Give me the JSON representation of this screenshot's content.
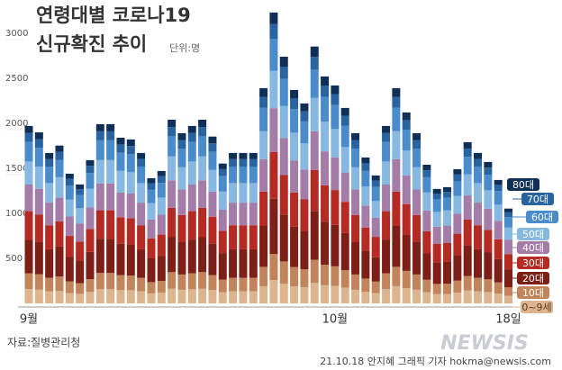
{
  "chart_data": {
    "type": "stacked_bar",
    "title": "연령대별 코로나19",
    "subtitle": "신규확진 추이",
    "unit": "단위:명",
    "source": "자료:질병관리청",
    "credit": "21.10.18 안지혜 그래픽 기자 hokma@newsis.com",
    "watermark": "NEWSIS",
    "categories": [
      "9월",
      null,
      null,
      null,
      null,
      null,
      null,
      null,
      null,
      null,
      null,
      null,
      null,
      null,
      null,
      null,
      null,
      null,
      null,
      null,
      null,
      null,
      null,
      null,
      null,
      null,
      null,
      null,
      null,
      null,
      "10월",
      null,
      null,
      null,
      null,
      null,
      null,
      null,
      null,
      null,
      null,
      null,
      null,
      null,
      null,
      null,
      null,
      "18일"
    ],
    "ylim": [
      0,
      3200
    ],
    "yticks": [
      500,
      1000,
      1500,
      2000,
      2500,
      3000
    ],
    "series": [
      {
        "name": "0~9세",
        "color": "#dcb58f",
        "values": [
          158,
          152,
          134,
          140,
          115,
          106,
          127,
          159,
          159,
          147,
          146,
          134,
          111,
          118,
          163,
          151,
          158,
          163,
          148,
          124,
          134,
          134,
          134,
          191,
          258,
          219,
          190,
          178,
          228,
          202,
          194,
          174,
          151,
          130,
          114,
          158,
          191,
          170,
          151,
          123,
          102,
          103,
          119,
          143,
          134,
          126,
          110,
          84
        ]
      },
      {
        "name": "10대",
        "color": "#c2845a",
        "values": [
          177,
          171,
          150,
          158,
          130,
          119,
          143,
          179,
          179,
          166,
          164,
          150,
          125,
          132,
          184,
          170,
          177,
          184,
          167,
          140,
          150,
          150,
          150,
          215,
          291,
          247,
          213,
          200,
          257,
          227,
          218,
          195,
          170,
          146,
          128,
          177,
          215,
          191,
          170,
          139,
          114,
          116,
          134,
          161,
          150,
          141,
          123,
          95
        ]
      },
      {
        "name": "20대",
        "color": "#7e1f17",
        "values": [
          374,
          361,
          317,
          333,
          274,
          251,
          302,
          378,
          378,
          350,
          346,
          317,
          264,
          279,
          388,
          359,
          374,
          388,
          352,
          295,
          317,
          317,
          317,
          454,
          614,
          521,
          450,
          422,
          542,
          479,
          460,
          412,
          359,
          308,
          270,
          374,
          454,
          403,
          359,
          293,
          241,
          245,
          283,
          340,
          317,
          298,
          260,
          200
        ]
      },
      {
        "name": "30대",
        "color": "#b52a22",
        "values": [
          315,
          304,
          267,
          280,
          230,
          211,
          254,
          318,
          318,
          294,
          291,
          267,
          222,
          235,
          326,
          302,
          315,
          326,
          296,
          248,
          267,
          267,
          267,
          382,
          517,
          438,
          379,
          355,
          456,
          403,
          387,
          347,
          302,
          259,
          227,
          315,
          382,
          339,
          302,
          246,
          203,
          206,
          238,
          286,
          267,
          251,
          219,
          168
        ]
      },
      {
        "name": "40대",
        "color": "#a47ca8",
        "values": [
          296,
          285,
          251,
          263,
          216,
          198,
          239,
          299,
          299,
          276,
          273,
          251,
          209,
          221,
          306,
          284,
          296,
          306,
          278,
          233,
          251,
          251,
          251,
          359,
          485,
          411,
          356,
          333,
          428,
          378,
          363,
          326,
          284,
          243,
          213,
          296,
          359,
          318,
          284,
          231,
          191,
          194,
          224,
          269,
          251,
          236,
          206,
          158
        ]
      },
      {
        "name": "50대",
        "color": "#86b8e2",
        "values": [
          256,
          247,
          217,
          228,
          187,
          172,
          207,
          259,
          259,
          239,
          237,
          217,
          181,
          191,
          265,
          246,
          256,
          265,
          241,
          202,
          217,
          217,
          217,
          311,
          420,
          356,
          308,
          289,
          371,
          328,
          315,
          282,
          246,
          211,
          185,
          256,
          311,
          276,
          246,
          200,
          165,
          168,
          194,
          233,
          217,
          204,
          178,
          137
        ]
      },
      {
        "name": "60대",
        "color": "#4a8ccb",
        "values": [
          217,
          209,
          184,
          193,
          158,
          145,
          175,
          219,
          219,
          202,
          200,
          184,
          153,
          162,
          224,
          208,
          217,
          224,
          204,
          171,
          184,
          184,
          184,
          263,
          355,
          301,
          261,
          244,
          314,
          277,
          266,
          239,
          208,
          178,
          156,
          217,
          263,
          233,
          208,
          169,
          140,
          142,
          164,
          197,
          184,
          173,
          151,
          116
        ]
      },
      {
        "name": "70대",
        "color": "#2a64a0",
        "values": [
          99,
          95,
          84,
          88,
          72,
          66,
          80,
          100,
          100,
          92,
          91,
          84,
          70,
          74,
          102,
          95,
          99,
          102,
          93,
          78,
          84,
          84,
          84,
          120,
          162,
          137,
          119,
          111,
          143,
          126,
          121,
          109,
          95,
          81,
          71,
          99,
          120,
          106,
          95,
          77,
          64,
          65,
          75,
          90,
          84,
          79,
          69,
          53
        ]
      },
      {
        "name": "80대",
        "color": "#102f56",
        "values": [
          79,
          76,
          67,
          70,
          58,
          53,
          64,
          80,
          80,
          74,
          73,
          67,
          56,
          59,
          82,
          76,
          79,
          82,
          74,
          62,
          67,
          67,
          67,
          96,
          129,
          110,
          95,
          89,
          114,
          101,
          97,
          87,
          76,
          65,
          57,
          79,
          96,
          85,
          76,
          62,
          51,
          52,
          60,
          72,
          67,
          63,
          55,
          42
        ]
      }
    ]
  }
}
